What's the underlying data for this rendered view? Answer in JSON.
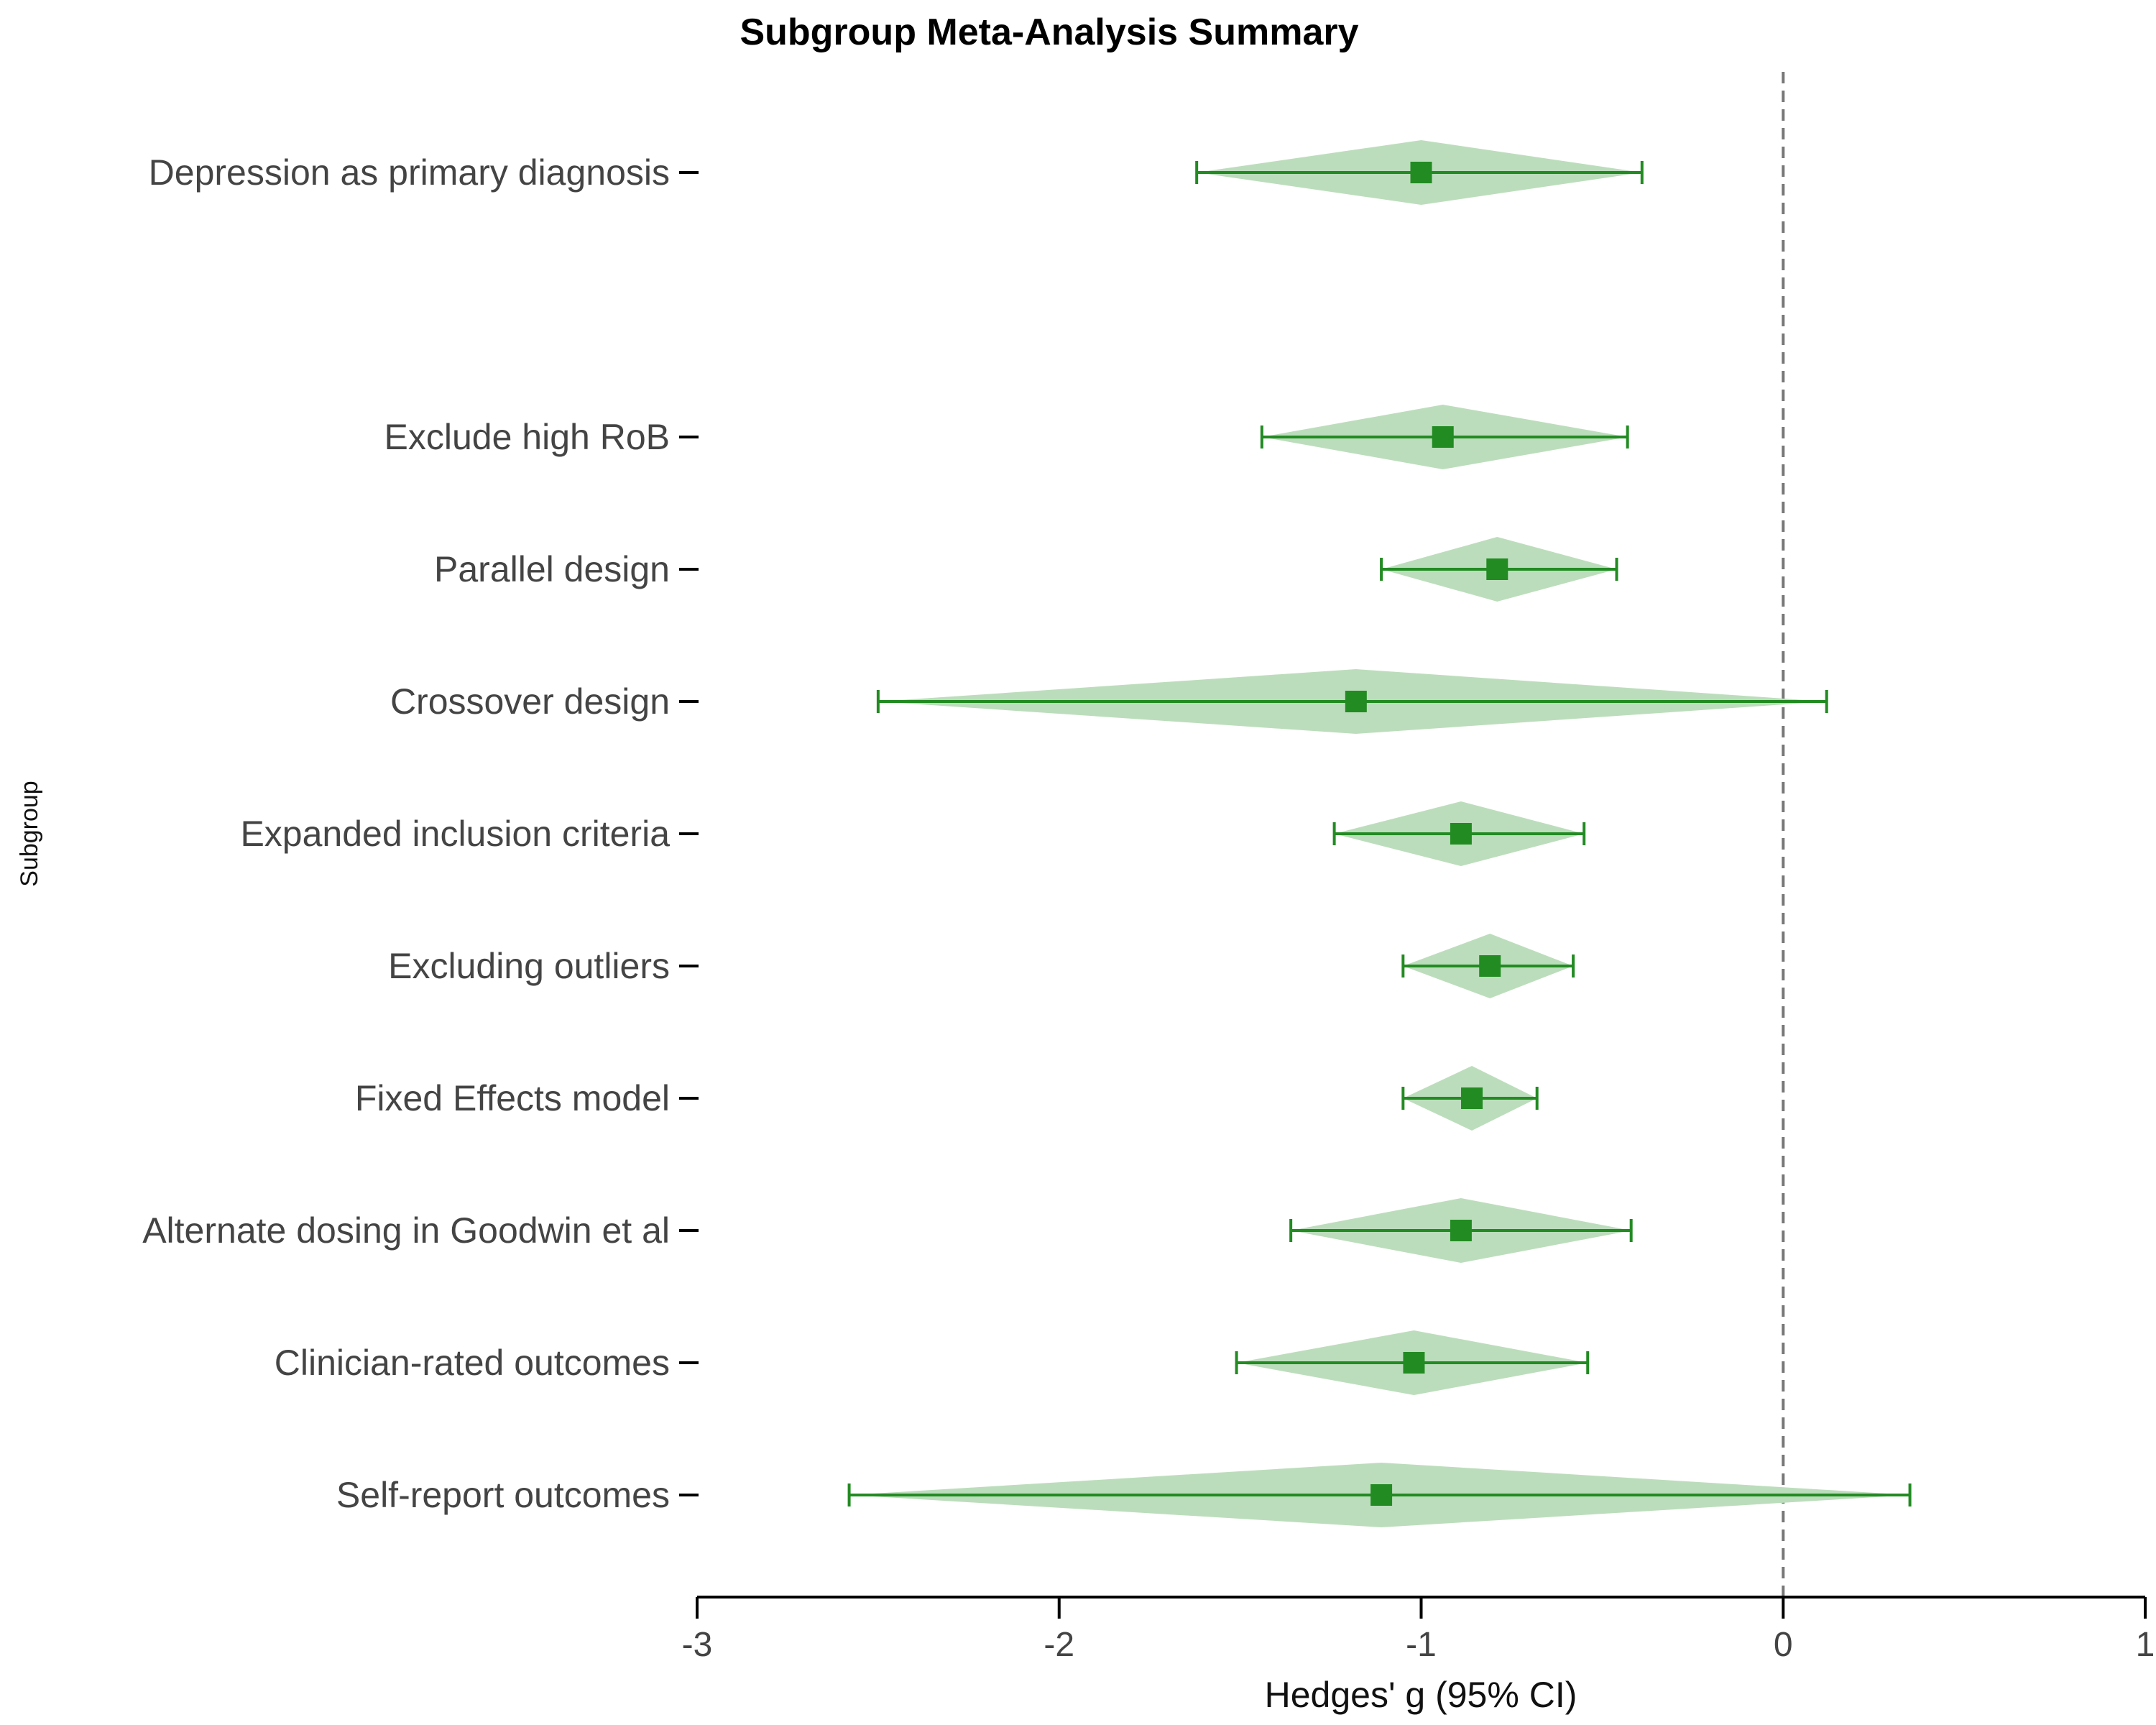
{
  "chart_data": {
    "type": "forest",
    "title": "Subgroup Meta-Analysis Summary",
    "xlabel": "Hedges' g (95% CI)",
    "ylabel": "Subgroup",
    "xlim": [
      -3,
      1
    ],
    "xticks": [
      -3,
      -2,
      -1,
      0,
      1
    ],
    "xtick_labels": [
      "-3",
      "-2",
      "-1",
      "0",
      "1"
    ],
    "reference_line": 0,
    "grid": false,
    "colors": {
      "marker": "#228b22",
      "diamond_fill": "#bcddbc",
      "reference_line": "#777777",
      "axis": "#000000"
    },
    "rows": [
      {
        "label": "Depression as primary diagnosis",
        "estimate": -1.0,
        "lower": -1.62,
        "upper": -0.39,
        "slot": 0
      },
      {
        "label": "Exclude high RoB",
        "estimate": -0.94,
        "lower": -1.44,
        "upper": -0.43,
        "slot": 2
      },
      {
        "label": "Parallel design",
        "estimate": -0.79,
        "lower": -1.11,
        "upper": -0.46,
        "slot": 3
      },
      {
        "label": "Crossover design",
        "estimate": -1.18,
        "lower": -2.5,
        "upper": 0.12,
        "slot": 4
      },
      {
        "label": "Expanded inclusion criteria",
        "estimate": -0.89,
        "lower": -1.24,
        "upper": -0.55,
        "slot": 5
      },
      {
        "label": "Excluding outliers",
        "estimate": -0.81,
        "lower": -1.05,
        "upper": -0.58,
        "slot": 6
      },
      {
        "label": "Fixed Effects model",
        "estimate": -0.86,
        "lower": -1.05,
        "upper": -0.68,
        "slot": 7
      },
      {
        "label": "Alternate dosing in Goodwin et al",
        "estimate": -0.89,
        "lower": -1.36,
        "upper": -0.42,
        "slot": 8
      },
      {
        "label": "Clinician-rated outcomes",
        "estimate": -1.02,
        "lower": -1.51,
        "upper": -0.54,
        "slot": 9
      },
      {
        "label": "Self-report outcomes",
        "estimate": -1.11,
        "lower": -2.58,
        "upper": 0.35,
        "slot": 10
      }
    ]
  }
}
